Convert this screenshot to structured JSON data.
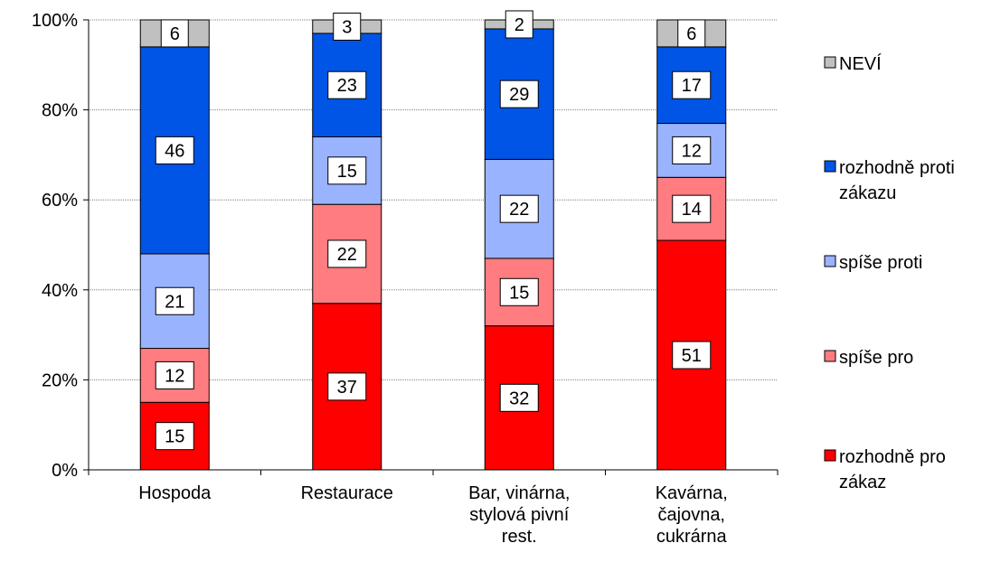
{
  "chart_data": {
    "type": "bar",
    "stacked": "percent",
    "categories": [
      [
        "Hospoda"
      ],
      [
        "Restaurace"
      ],
      [
        "Bar, vinárna,",
        "stylová pivní",
        "rest."
      ],
      [
        "Kavárna,",
        "čajovna,",
        "cukrárna"
      ]
    ],
    "series": [
      {
        "name": "rozhodně pro zákaz",
        "legend_lines": [
          "rozhodně pro",
          "zákaz"
        ],
        "color": "#ff0000",
        "values": [
          15,
          37,
          32,
          51
        ]
      },
      {
        "name": "spíše pro",
        "legend_lines": [
          "spíše pro"
        ],
        "color": "#ff7c80",
        "values": [
          12,
          22,
          15,
          14
        ]
      },
      {
        "name": "spíše proti",
        "legend_lines": [
          "spíše proti"
        ],
        "color": "#99b3ff",
        "values": [
          21,
          15,
          22,
          12
        ]
      },
      {
        "name": "rozhodně proti zákazu",
        "legend_lines": [
          "rozhodně proti",
          "zákazu"
        ],
        "color": "#0055e6",
        "values": [
          46,
          23,
          29,
          17
        ]
      },
      {
        "name": "NEVÍ",
        "legend_lines": [
          "NEVÍ"
        ],
        "color": "#c0c0c0",
        "values": [
          6,
          3,
          2,
          6
        ]
      }
    ],
    "y_ticks": [
      "0%",
      "20%",
      "40%",
      "60%",
      "80%",
      "100%"
    ],
    "ylim": [
      0,
      100
    ],
    "grid": true,
    "legend_position": "right",
    "title": "",
    "xlabel": "",
    "ylabel": ""
  }
}
